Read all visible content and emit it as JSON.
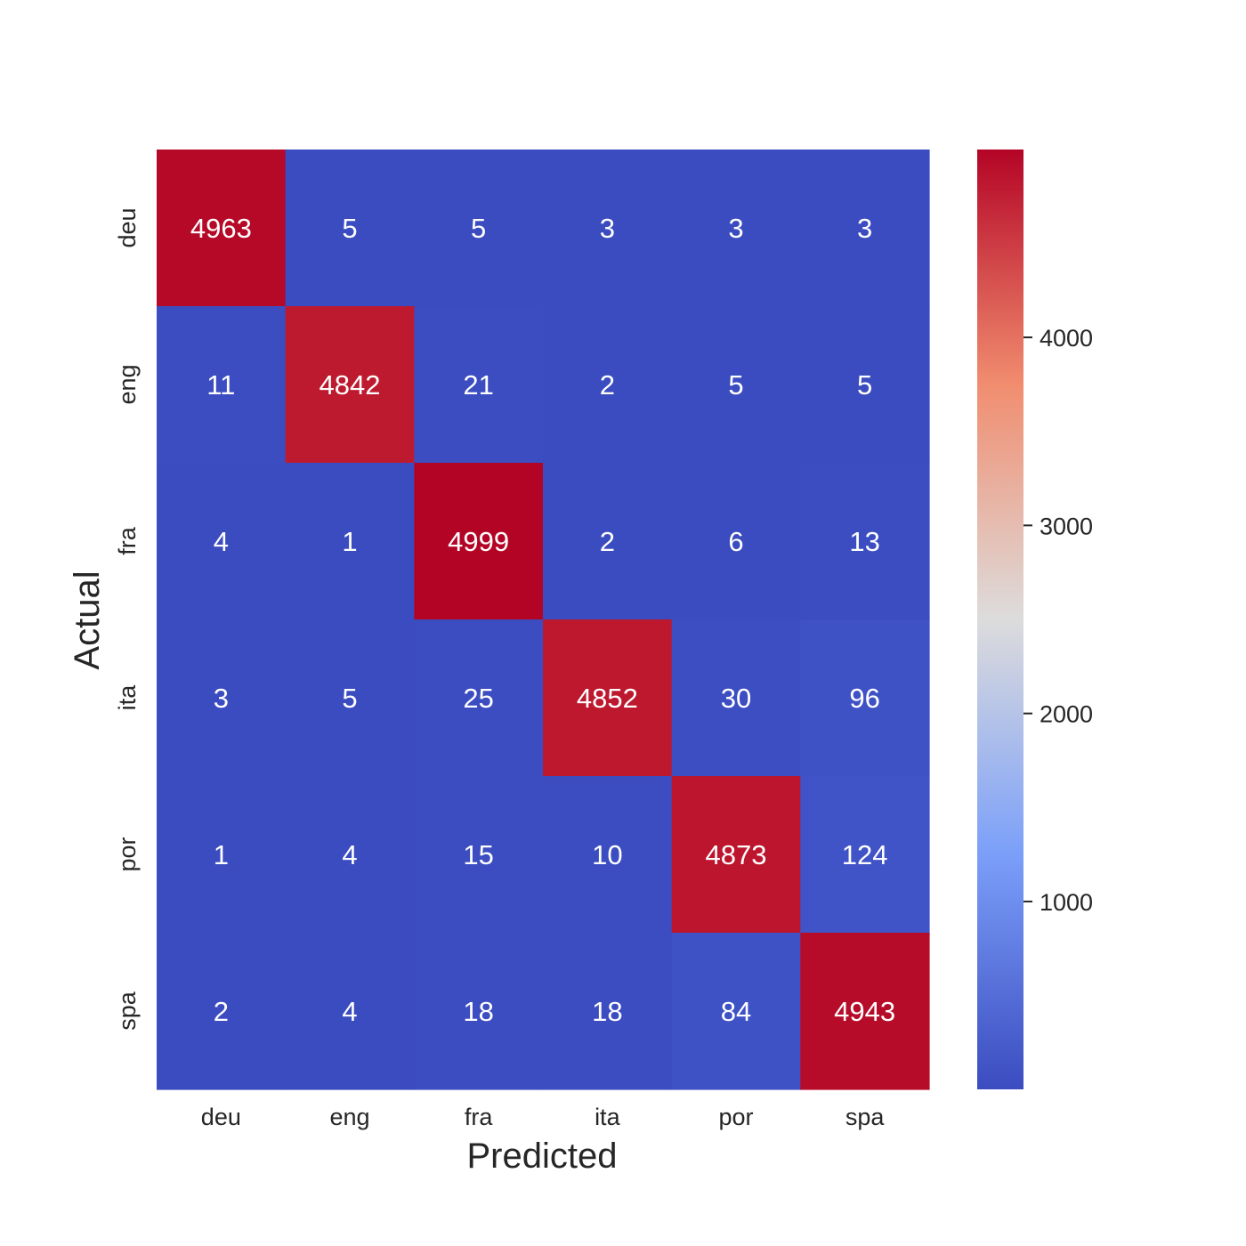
{
  "chart_data": {
    "type": "heatmap",
    "xlabel": "Predicted",
    "ylabel": "Actual",
    "x_categories": [
      "deu",
      "eng",
      "fra",
      "ita",
      "por",
      "spa"
    ],
    "y_categories": [
      "deu",
      "eng",
      "fra",
      "ita",
      "por",
      "spa"
    ],
    "values": [
      [
        4963,
        5,
        5,
        3,
        3,
        3
      ],
      [
        11,
        4842,
        21,
        2,
        5,
        5
      ],
      [
        4,
        1,
        4999,
        2,
        6,
        13
      ],
      [
        3,
        5,
        25,
        4852,
        30,
        96
      ],
      [
        1,
        4,
        15,
        10,
        4873,
        124
      ],
      [
        2,
        4,
        18,
        18,
        84,
        4943
      ]
    ],
    "colormap": "coolwarm",
    "vmin": 1,
    "vmax": 4999,
    "colorbar": {
      "ticks": [
        1000,
        2000,
        3000,
        4000
      ],
      "tick_labels": [
        "1000",
        "2000",
        "3000",
        "4000"
      ],
      "position": "right"
    },
    "annotation_color": "#ffffff",
    "grid": false
  }
}
